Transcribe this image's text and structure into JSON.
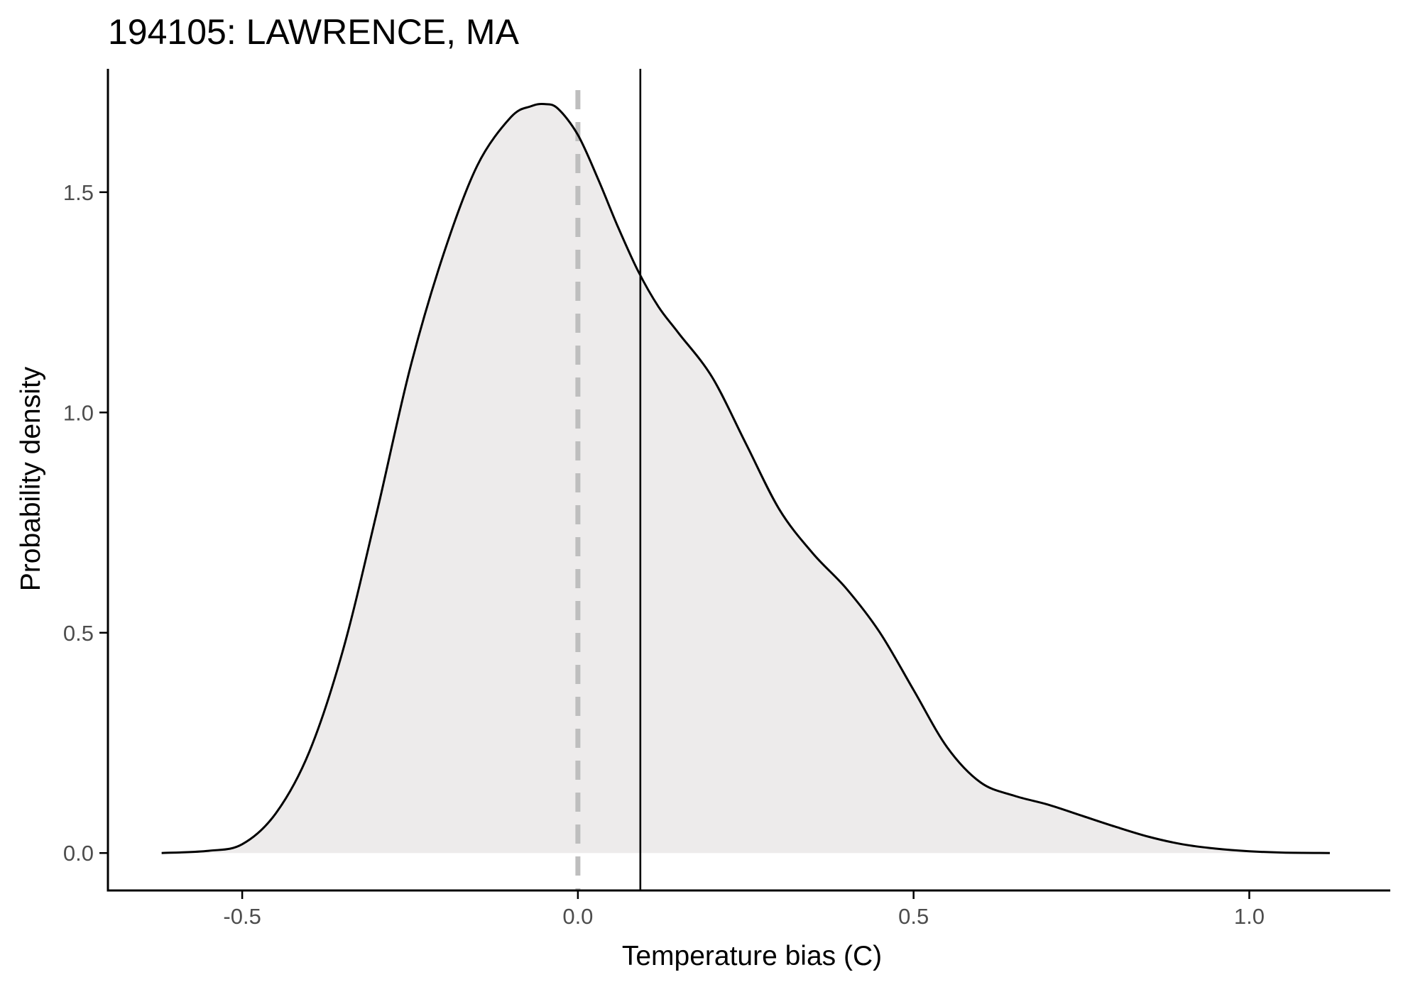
{
  "chart_data": {
    "type": "area",
    "title": "194105: LAWRENCE, MA",
    "xlabel": "Temperature bias (C)",
    "ylabel": "Probability density",
    "xlim": [
      -0.7,
      1.21
    ],
    "ylim": [
      -0.085,
      1.78
    ],
    "x_ticks": [
      -0.5,
      0.0,
      0.5,
      1.0
    ],
    "x_tick_labels": [
      "-0.5",
      "0.0",
      "0.5",
      "1.0"
    ],
    "y_ticks": [
      0.0,
      0.5,
      1.0,
      1.5
    ],
    "y_tick_labels": [
      "0.0",
      "0.5",
      "1.0",
      "1.5"
    ],
    "grid": false,
    "legend": "none",
    "density_curve": {
      "x": [
        -0.62,
        -0.55,
        -0.5,
        -0.45,
        -0.4,
        -0.35,
        -0.3,
        -0.25,
        -0.2,
        -0.15,
        -0.1,
        -0.07,
        -0.05,
        -0.03,
        0.0,
        0.03,
        0.06,
        0.09,
        0.12,
        0.15,
        0.2,
        0.25,
        0.3,
        0.35,
        0.4,
        0.45,
        0.5,
        0.55,
        0.6,
        0.65,
        0.7,
        0.75,
        0.8,
        0.85,
        0.9,
        0.95,
        1.0,
        1.05,
        1.12
      ],
      "y": [
        0.0,
        0.005,
        0.02,
        0.09,
        0.23,
        0.46,
        0.77,
        1.1,
        1.36,
        1.56,
        1.67,
        1.695,
        1.7,
        1.69,
        1.63,
        1.53,
        1.42,
        1.32,
        1.24,
        1.18,
        1.08,
        0.93,
        0.78,
        0.68,
        0.6,
        0.5,
        0.37,
        0.24,
        0.16,
        0.13,
        0.11,
        0.085,
        0.06,
        0.037,
        0.02,
        0.01,
        0.004,
        0.001,
        0.0
      ]
    },
    "reference_lines": [
      {
        "x": 0.0,
        "style": "dashed",
        "color": "#bebebe"
      },
      {
        "x": 0.093,
        "style": "solid",
        "color": "#000000"
      }
    ],
    "colors": {
      "fill": "#edebeb",
      "curve": "#000000",
      "axis": "#000000",
      "tick_label": "#4d4d4d"
    }
  }
}
